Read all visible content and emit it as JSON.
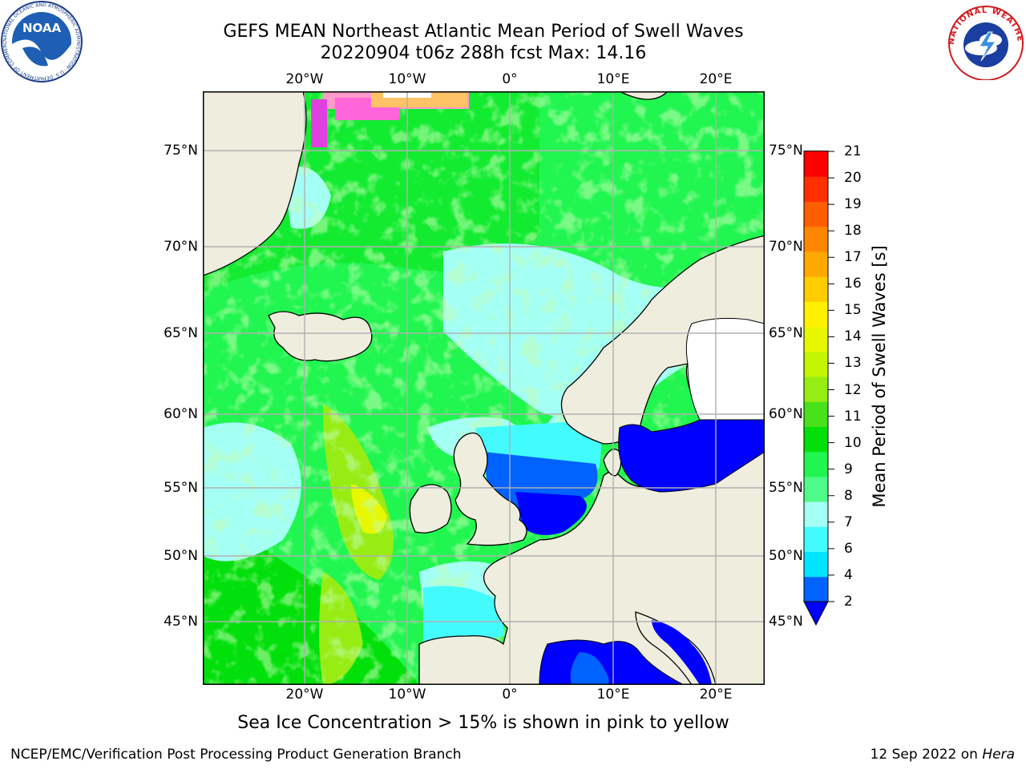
{
  "header": {
    "title_line1": "GEFS MEAN Northeast Atlantic Mean Period of Swell Waves",
    "title_line2": "20220904 t06z 288h fcst   Max: 14.16"
  },
  "map": {
    "top_lon_labels": [
      "20°W",
      "10°W",
      "0°",
      "10°E",
      "20°E"
    ],
    "bottom_lon_labels": [
      "20°W",
      "10°W",
      "0°",
      "10°E",
      "20°E"
    ],
    "left_lat_labels": [
      "75°N",
      "70°N",
      "65°N",
      "60°N",
      "55°N",
      "50°N",
      "45°N"
    ],
    "right_lat_labels": [
      "75°N",
      "70°N",
      "65°N",
      "60°N",
      "55°N",
      "50°N",
      "45°N"
    ],
    "lon_range": [
      -30,
      25
    ],
    "lat_range": [
      40.5,
      78
    ],
    "land_color": "#efedde",
    "grid_color": "#b0b0b0"
  },
  "colorbar": {
    "title": "Mean Period of Swell Waves [s]",
    "ticks": [
      "2",
      "4",
      "6",
      "7",
      "8",
      "9",
      "10",
      "11",
      "12",
      "13",
      "14",
      "15",
      "16",
      "17",
      "18",
      "19",
      "20",
      "21"
    ],
    "colors": [
      "#0062ff",
      "#00e4ff",
      "#43fbfc",
      "#a4fff4",
      "#4ffb88",
      "#21f550",
      "#02e00c",
      "#49e11a",
      "#97ec13",
      "#c3f600",
      "#e7f700",
      "#fff000",
      "#ffcc00",
      "#ffa800",
      "#ff8700",
      "#ff5e00",
      "#ff3000",
      "#ff0000"
    ],
    "under_color": "#0000ff"
  },
  "caption": "Sea Ice Concentration > 15% is shown in pink to yellow",
  "footer": {
    "left": "NCEP/EMC/Verification Post Processing Product Generation Branch",
    "right_date": "12 Sep 2022 on",
    "right_machine": "Hera"
  },
  "logos": {
    "noaa": "NOAA",
    "noaa_ring": "NATIONAL OCEANIC AND ATMOSPHERIC ADMINISTRATION · U.S. DEPARTMENT OF COMMERCE",
    "nws": "NATIONAL WEATHER SERVICE"
  }
}
